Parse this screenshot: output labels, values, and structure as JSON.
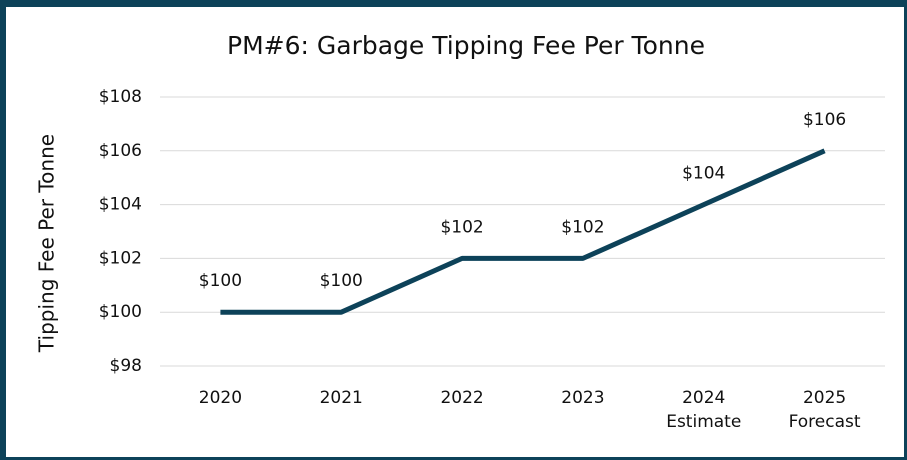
{
  "chart_data": {
    "type": "line",
    "title": "PM#6: Garbage Tipping Fee Per Tonne",
    "y_label": "Tipping Fee Per Tonne",
    "categories": [
      "2020",
      "2021",
      "2022",
      "2023",
      "2024 Estimate",
      "2025 Forecast"
    ],
    "series": [
      {
        "name": "Tipping Fee Per Tonne",
        "color": "#0d4259",
        "values": [
          100,
          100,
          102,
          102,
          104,
          106
        ],
        "value_labels": [
          "$100",
          "$100",
          "$102",
          "$102",
          "$104",
          "$106"
        ]
      }
    ],
    "ylim": [
      98,
      108
    ],
    "yticks": [
      {
        "value": 98,
        "label": "$98"
      },
      {
        "value": 100,
        "label": "$100"
      },
      {
        "value": 102,
        "label": "$102"
      },
      {
        "value": 104,
        "label": "$104"
      },
      {
        "value": 106,
        "label": "$106"
      },
      {
        "value": 108,
        "label": "$108"
      }
    ],
    "grid": true
  }
}
